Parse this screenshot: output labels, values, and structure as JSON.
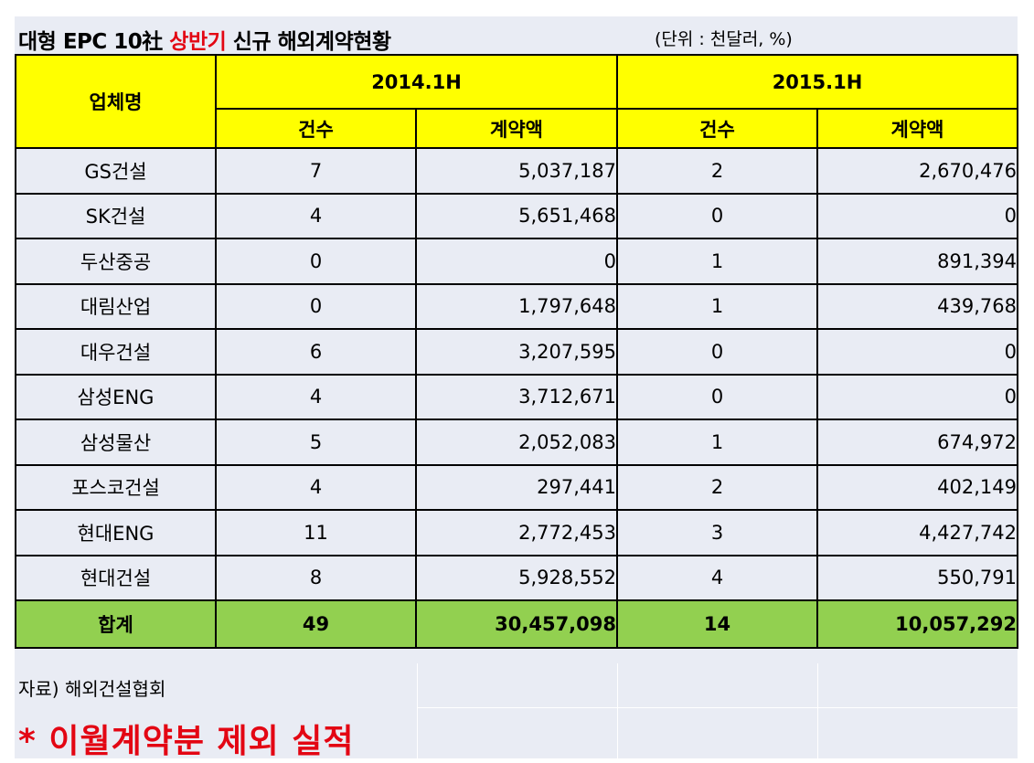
{
  "title": {
    "prefix": "대형 EPC 10社 ",
    "highlight": "상반기",
    "suffix": " 신규 해외계약현황",
    "unit": "(단위 : 천달러, %)"
  },
  "colors": {
    "header": "#ffff00",
    "total": "#92d050",
    "highlight": "#e30613",
    "row_bg": "#e9ecf4"
  },
  "table": {
    "company_header": "업체명",
    "period_1": "2014.1H",
    "period_2": "2015.1H",
    "count_header": "건수",
    "amount_header": "계약액",
    "rows": [
      {
        "company": "GS건설",
        "count_2014": "7",
        "amount_2014": "5,037,187",
        "count_2015": "2",
        "amount_2015": "2,670,476"
      },
      {
        "company": "SK건설",
        "count_2014": "4",
        "amount_2014": "5,651,468",
        "count_2015": "0",
        "amount_2015": "0"
      },
      {
        "company": "두산중공",
        "count_2014": "0",
        "amount_2014": "0",
        "count_2015": "1",
        "amount_2015": "891,394"
      },
      {
        "company": "대림산업",
        "count_2014": "0",
        "amount_2014": "1,797,648",
        "count_2015": "1",
        "amount_2015": "439,768"
      },
      {
        "company": "대우건설",
        "count_2014": "6",
        "amount_2014": "3,207,595",
        "count_2015": "0",
        "amount_2015": "0"
      },
      {
        "company": "삼성ENG",
        "count_2014": "4",
        "amount_2014": "3,712,671",
        "count_2015": "0",
        "amount_2015": "0"
      },
      {
        "company": "삼성물산",
        "count_2014": "5",
        "amount_2014": "2,052,083",
        "count_2015": "1",
        "amount_2015": "674,972"
      },
      {
        "company": "포스코건설",
        "count_2014": "4",
        "amount_2014": "297,441",
        "count_2015": "2",
        "amount_2015": "402,149"
      },
      {
        "company": "현대ENG",
        "count_2014": "11",
        "amount_2014": "2,772,453",
        "count_2015": "3",
        "amount_2015": "4,427,742"
      },
      {
        "company": "현대건설",
        "count_2014": "8",
        "amount_2014": "5,928,552",
        "count_2015": "4",
        "amount_2015": "550,791"
      }
    ],
    "total": {
      "company": "합계",
      "count_2014": "49",
      "amount_2014": "30,457,098",
      "count_2015": "14",
      "amount_2015": "10,057,292"
    }
  },
  "footer": {
    "source": "자료) 해외건설협회",
    "note": "* 이월계약분 제외 실적"
  }
}
